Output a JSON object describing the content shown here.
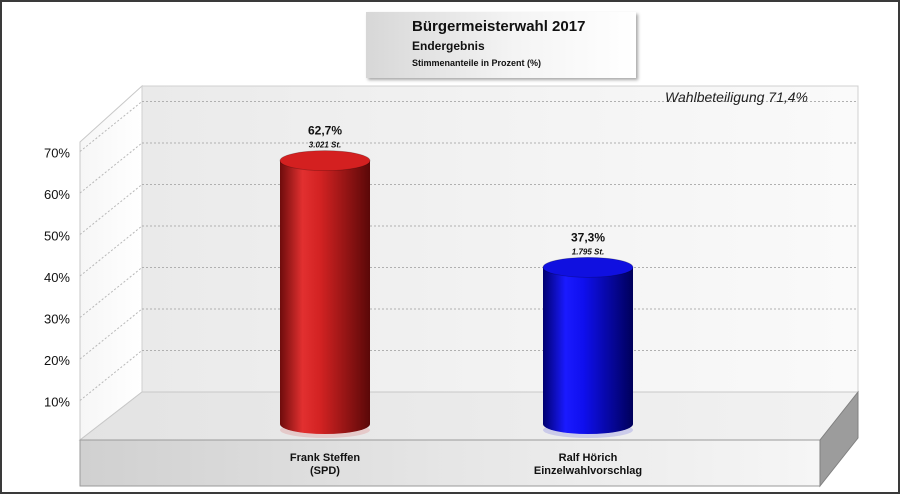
{
  "chart_data": {
    "type": "bar",
    "title": "Bürgermeisterwahl 2017",
    "subtitle": "Endergebnis",
    "subtitle2": "Stimmenanteile in Prozent (%)",
    "annotation": "Wahlbeteiligung 71,4%",
    "categories": [
      {
        "line1": "Frank Steffen",
        "line2": "(SPD)"
      },
      {
        "line1": "Ralf Hörich",
        "line2": "Einzelwahlvorschlag"
      }
    ],
    "values": [
      62.7,
      37.3
    ],
    "value_labels": [
      "62,7%",
      "37,3%"
    ],
    "vote_labels": [
      "3.021 St.",
      "1.795 St."
    ],
    "colors": [
      "#d42020",
      "#1010e0"
    ],
    "y_ticks": [
      10,
      20,
      30,
      40,
      50,
      60,
      70
    ],
    "y_tick_labels": [
      "10%",
      "20%",
      "30%",
      "40%",
      "50%",
      "60%",
      "70%"
    ],
    "ylim": [
      0,
      80
    ],
    "grid": true
  }
}
